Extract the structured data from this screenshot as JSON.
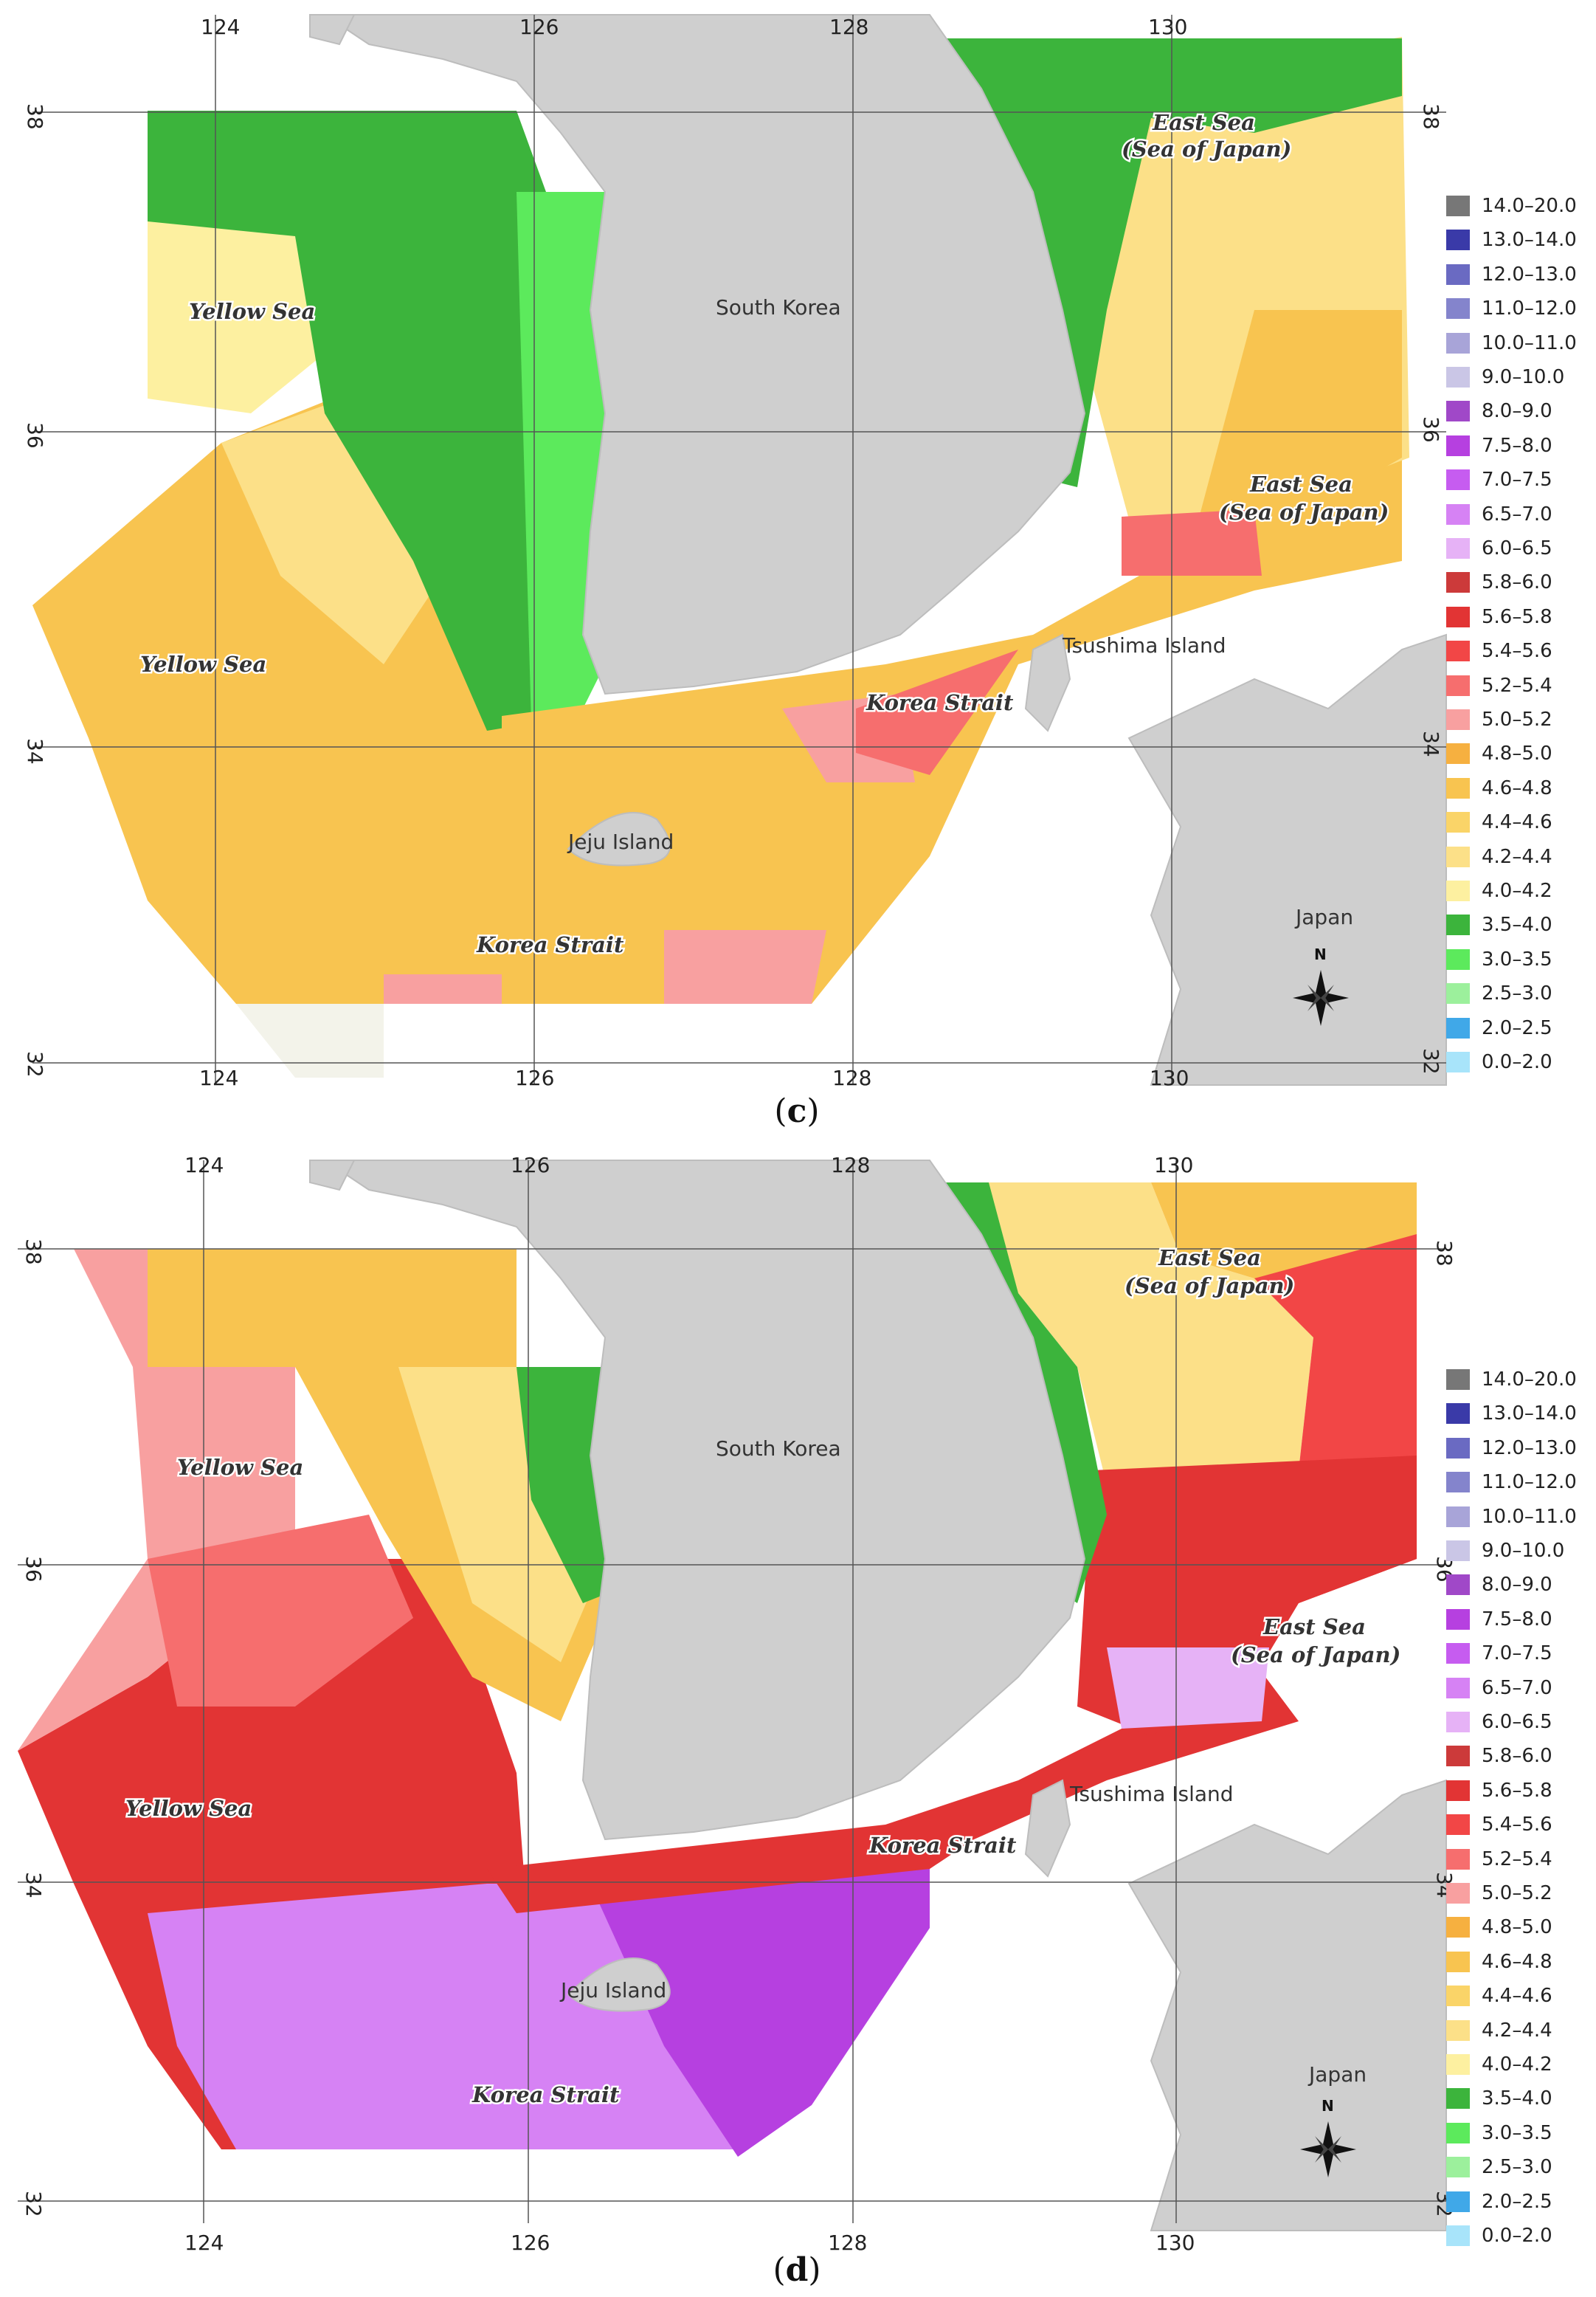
{
  "panels": [
    {
      "id": "c",
      "label": "c",
      "top_lon_labels": [
        "124",
        "126",
        "128",
        "130"
      ],
      "bottom_lon_labels": [
        "124",
        "126",
        "128",
        "130"
      ],
      "left_lat_labels": [
        "38",
        "36",
        "34",
        "32"
      ],
      "right_lat_labels": [
        "38",
        "36",
        "34",
        "32"
      ],
      "places": {
        "south_korea": "South Korea",
        "jeju": "Jeju Island",
        "tsushima": "Tsushima Island",
        "japan": "Japan",
        "north_symbol": "N"
      },
      "seas": {
        "yellow_sea_north": "Yellow Sea",
        "yellow_sea_south": "Yellow Sea",
        "east_sea_north_1": "East Sea",
        "east_sea_north_2": "(Sea of Japan)",
        "east_sea_south_1": "East Sea",
        "east_sea_south_2": "(Sea of Japan)",
        "korea_strait_east": "Korea Strait",
        "korea_strait_south": "Korea Strait"
      }
    },
    {
      "id": "d",
      "label": "d",
      "top_lon_labels": [
        "124",
        "126",
        "128",
        "130"
      ],
      "bottom_lon_labels": [
        "124",
        "126",
        "128",
        "130"
      ],
      "left_lat_labels": [
        "38",
        "36",
        "34",
        "32"
      ],
      "right_lat_labels": [
        "38",
        "36",
        "34",
        "32"
      ],
      "places": {
        "south_korea": "South Korea",
        "jeju": "Jeju Island",
        "tsushima": "Tsushima Island",
        "japan": "Japan",
        "north_symbol": "N"
      },
      "seas": {
        "yellow_sea_north": "Yellow Sea",
        "yellow_sea_south": "Yellow Sea",
        "east_sea_north_1": "East Sea",
        "east_sea_north_2": "(Sea of Japan)",
        "east_sea_south_1": "East Sea",
        "east_sea_south_2": "(Sea of Japan)",
        "korea_strait_east": "Korea Strait",
        "korea_strait_south": "Korea Strait"
      }
    }
  ],
  "legend": [
    {
      "label": "14.0–20.0",
      "color": "#777777"
    },
    {
      "label": "13.0–14.0",
      "color": "#3a3aa8"
    },
    {
      "label": "12.0–13.0",
      "color": "#6a6ac2"
    },
    {
      "label": "11.0–12.0",
      "color": "#8484cc"
    },
    {
      "label": "10.0–11.0",
      "color": "#a8a4d8"
    },
    {
      "label": "9.0–10.0",
      "color": "#cac6e6"
    },
    {
      "label": "8.0–9.0",
      "color": "#a048c8"
    },
    {
      "label": "7.5–8.0",
      "color": "#b640e0"
    },
    {
      "label": "7.0–7.5",
      "color": "#c65cf0"
    },
    {
      "label": "6.5–7.0",
      "color": "#d682f4"
    },
    {
      "label": "6.0–6.5",
      "color": "#e6b2f6"
    },
    {
      "label": "5.8–6.0",
      "color": "#cc3a3a"
    },
    {
      "label": "5.6–5.8",
      "color": "#e23434"
    },
    {
      "label": "5.4–5.6",
      "color": "#f24646"
    },
    {
      "label": "5.2–5.4",
      "color": "#f66e6e"
    },
    {
      "label": "5.0–5.2",
      "color": "#f8a0a0"
    },
    {
      "label": "4.8–5.0",
      "color": "#f6b040"
    },
    {
      "label": "4.6–4.8",
      "color": "#f8c450"
    },
    {
      "label": "4.4–4.6",
      "color": "#fad468"
    },
    {
      "label": "4.2–4.4",
      "color": "#fce088"
    },
    {
      "label": "4.0–4.2",
      "color": "#fdf0a0"
    },
    {
      "label": "3.5–4.0",
      "color": "#3cb43c"
    },
    {
      "label": "3.0–3.5",
      "color": "#5cea5c"
    },
    {
      "label": "2.5–3.0",
      "color": "#9cf09c"
    },
    {
      "label": "2.0–2.5",
      "color": "#40a8e8"
    },
    {
      "label": "0.0–2.0",
      "color": "#a8e4fa"
    }
  ],
  "colors": {
    "land": "#cfcfcf",
    "land_stroke": "#bdbdbd",
    "grid": "#555555"
  }
}
